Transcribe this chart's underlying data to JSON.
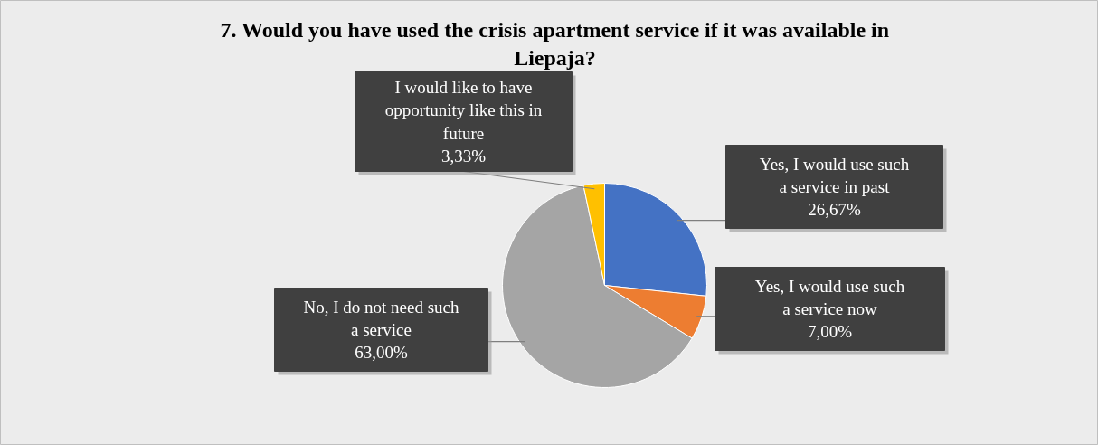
{
  "chart_data": {
    "type": "pie",
    "title": "7. Would you have used the crisis apartment service if it was available in Liepaja?",
    "categories": [
      "Yes, I would use such a service in past",
      "Yes, I would use such a service now",
      "No, I do not need such a service",
      "I would like to have opportunity like this in future"
    ],
    "values": [
      26.67,
      7.0,
      63.0,
      3.33
    ],
    "colors": [
      "#4472c4",
      "#ed7d31",
      "#a5a5a5",
      "#ffc000"
    ],
    "value_labels": [
      "26,67%",
      "7,00%",
      "63,00%",
      "3,33%"
    ]
  }
}
